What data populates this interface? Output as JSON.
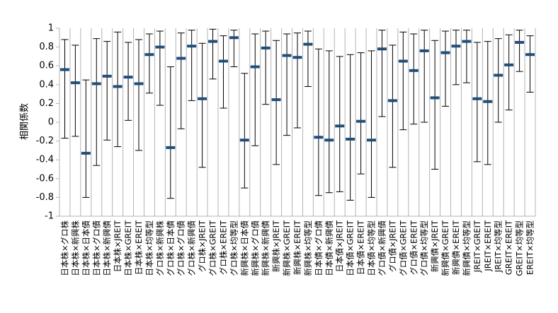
{
  "chart_data": {
    "type": "error-bar",
    "ylabel": "相関係数",
    "ylim": [
      -1,
      1
    ],
    "y_ticks": [
      1,
      0.8,
      0.6,
      0.4,
      0.2,
      0,
      -0.2,
      -0.4,
      -0.6,
      -0.8,
      -1
    ],
    "y_tick_labels": [
      "1",
      "0.8",
      "0.6",
      "0.4",
      "0.2",
      "0",
      "-0.2",
      "-0.4",
      "-0.6",
      "-0.8",
      "-1"
    ],
    "grid": "vertical",
    "marker_color": "#1f4e79",
    "whisker_color": "#000000",
    "categories": [
      "日本株×グロ株",
      "日本株×新興株",
      "日本株×日本債",
      "日本株×グロ債",
      "日本株×新興債",
      "日本株×JREIT",
      "日本株×GREIT",
      "日本株×EREIT",
      "日本株×均等型",
      "グロ株×新興株",
      "グロ株×日本債",
      "グロ株×グロ債",
      "グロ株×新興債",
      "グロ株×JREIT",
      "グロ株×GREIT",
      "グロ株×EREIT",
      "グロ株×均等型",
      "新興株×日本債",
      "新興株×グロ債",
      "新興株×新興債",
      "新興株×JREIT",
      "新興株×GREIT",
      "新興株×EREIT",
      "新興株×均等型",
      "日本債×グロ債",
      "日本債×新興債",
      "日本債×JREIT",
      "日本債×GREIT",
      "日本債×EREIT",
      "日本債×均等型",
      "グロ債×新興債",
      "グロ債×JREIT",
      "グロ債×GREIT",
      "グロ債×EREIT",
      "グロ債×均等型",
      "新興債×JREIT",
      "新興債×GREIT",
      "新興債×EREIT",
      "新興債×均等型",
      "JREIT×GREIT",
      "JREIT×EREIT",
      "JREIT×均等型",
      "GREIT×EREIT",
      "GREIT×均等型",
      "EREIT×均等型"
    ],
    "mean": [
      0.56,
      0.42,
      -0.33,
      0.41,
      0.49,
      0.38,
      0.48,
      0.41,
      0.72,
      0.8,
      -0.27,
      0.68,
      0.81,
      0.25,
      0.86,
      0.65,
      0.9,
      -0.19,
      0.59,
      0.79,
      0.24,
      0.71,
      0.69,
      0.83,
      -0.16,
      -0.19,
      -0.04,
      -0.18,
      0.01,
      -0.19,
      0.78,
      0.23,
      0.65,
      0.55,
      0.76,
      0.26,
      0.74,
      0.81,
      0.86,
      0.25,
      0.22,
      0.5,
      0.61,
      0.85,
      0.72
    ],
    "upper": [
      0.88,
      0.82,
      0.45,
      0.89,
      0.86,
      0.96,
      0.85,
      0.88,
      0.94,
      0.97,
      0.59,
      0.95,
      0.98,
      0.84,
      0.99,
      0.92,
      0.98,
      0.52,
      0.94,
      0.97,
      0.87,
      0.94,
      0.95,
      0.97,
      0.78,
      0.76,
      0.7,
      0.72,
      0.74,
      0.76,
      0.98,
      0.82,
      0.96,
      0.94,
      0.98,
      0.87,
      0.97,
      0.98,
      0.98,
      0.85,
      0.86,
      0.89,
      0.93,
      0.98,
      0.92
    ],
    "lower": [
      -0.17,
      -0.15,
      -0.8,
      -0.46,
      -0.19,
      -0.26,
      0.02,
      -0.3,
      0.31,
      0.18,
      -0.81,
      -0.07,
      0.23,
      -0.48,
      0.46,
      0.15,
      0.59,
      -0.7,
      -0.25,
      0.19,
      -0.45,
      -0.14,
      -0.06,
      0.38,
      -0.78,
      -0.75,
      -0.74,
      -0.83,
      -0.55,
      -0.8,
      0.06,
      -0.48,
      -0.08,
      -0.02,
      0.0,
      -0.5,
      0.17,
      0.4,
      0.42,
      -0.42,
      -0.45,
      0.0,
      0.13,
      0.54,
      0.32
    ]
  }
}
